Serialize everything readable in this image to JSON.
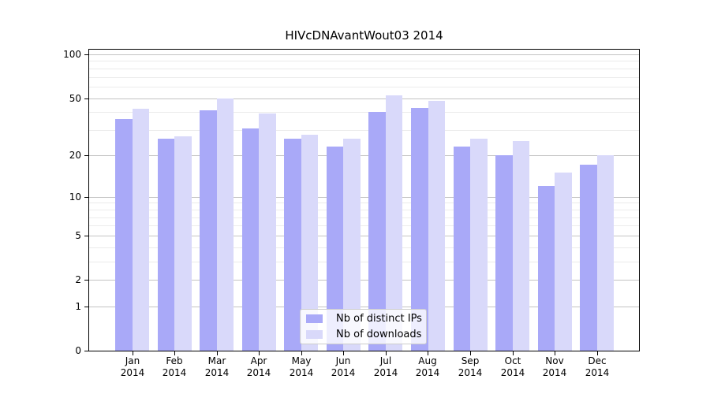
{
  "chart_data": {
    "type": "bar",
    "title": "HIVcDNAvantWout03 2014",
    "categories": [
      "Jan",
      "Feb",
      "Mar",
      "Apr",
      "May",
      "Jun",
      "Jul",
      "Aug",
      "Sep",
      "Oct",
      "Nov",
      "Dec"
    ],
    "year_label": "2014",
    "series": [
      {
        "name": "Nb of distinct IPs",
        "key": "ips",
        "color": "#a9a9f8",
        "values": [
          36,
          26,
          41,
          31,
          26,
          23,
          40,
          43,
          23,
          20,
          12,
          17
        ]
      },
      {
        "name": "Nb of downloads",
        "key": "downloads",
        "color": "#d9d9fa",
        "values": [
          42,
          27,
          50,
          39,
          28,
          26,
          52,
          48,
          26,
          25,
          15,
          20
        ]
      }
    ],
    "xlabel": "",
    "ylabel": "",
    "y_scale": "log1p",
    "ylim": [
      0,
      107.5
    ],
    "y_major_ticks": [
      100,
      50,
      20,
      10,
      5,
      2,
      1,
      0
    ],
    "y_minor_ticks": [
      90,
      80,
      70,
      60,
      40,
      30,
      9,
      8,
      7,
      6,
      4,
      3
    ],
    "grid": true,
    "legend_position": "lower center"
  },
  "colors": {
    "background": "#ffffff",
    "spine": "#000000",
    "major_grid": "#c3c3c3",
    "minor_grid": "#ebebeb",
    "tick": "#000000",
    "legend_border": "#cccccc",
    "legend_background": "rgba(255,255,255,0.8)"
  }
}
